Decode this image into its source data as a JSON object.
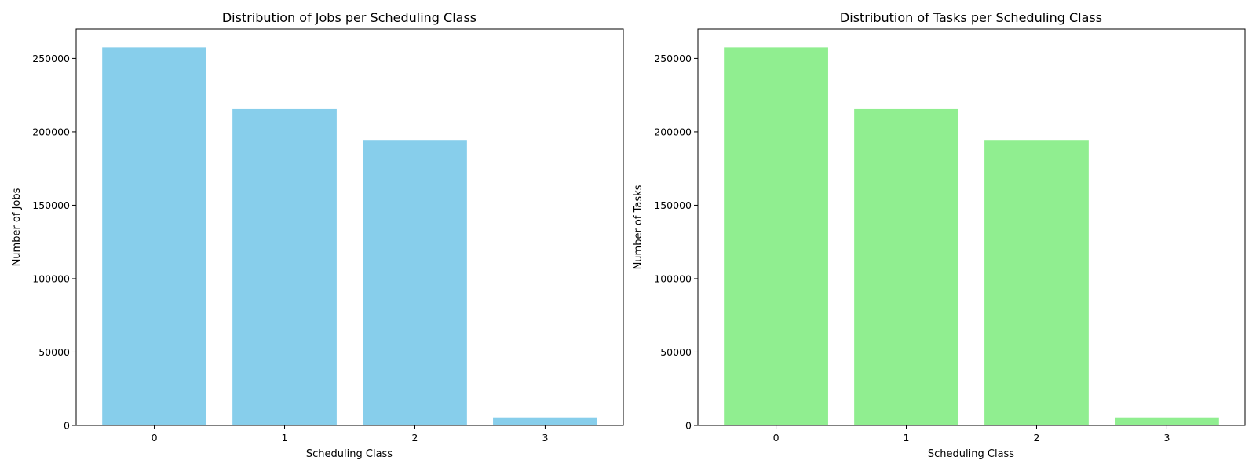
{
  "chart_data": [
    {
      "type": "bar",
      "title": "Distribution of Jobs per Scheduling Class",
      "xlabel": "Scheduling Class",
      "ylabel": "Number of Jobs",
      "categories": [
        "0",
        "1",
        "2",
        "3"
      ],
      "values": [
        257500,
        215500,
        194500,
        5500
      ],
      "ylim": [
        0,
        270000
      ],
      "yticks": [
        0,
        50000,
        100000,
        150000,
        200000,
        250000
      ],
      "ytick_labels": [
        "0",
        "50000",
        "100000",
        "150000",
        "200000",
        "250000"
      ],
      "color": "#87ceeb",
      "grid": false
    },
    {
      "type": "bar",
      "title": "Distribution of Tasks per Scheduling Class",
      "xlabel": "Scheduling Class",
      "ylabel": "Number of Tasks",
      "categories": [
        "0",
        "1",
        "2",
        "3"
      ],
      "values": [
        257500,
        215500,
        194500,
        5500
      ],
      "ylim": [
        0,
        270000
      ],
      "yticks": [
        0,
        50000,
        100000,
        150000,
        200000,
        250000
      ],
      "ytick_labels": [
        "0",
        "50000",
        "100000",
        "150000",
        "200000",
        "250000"
      ],
      "color": "#90ee90",
      "grid": false
    }
  ]
}
